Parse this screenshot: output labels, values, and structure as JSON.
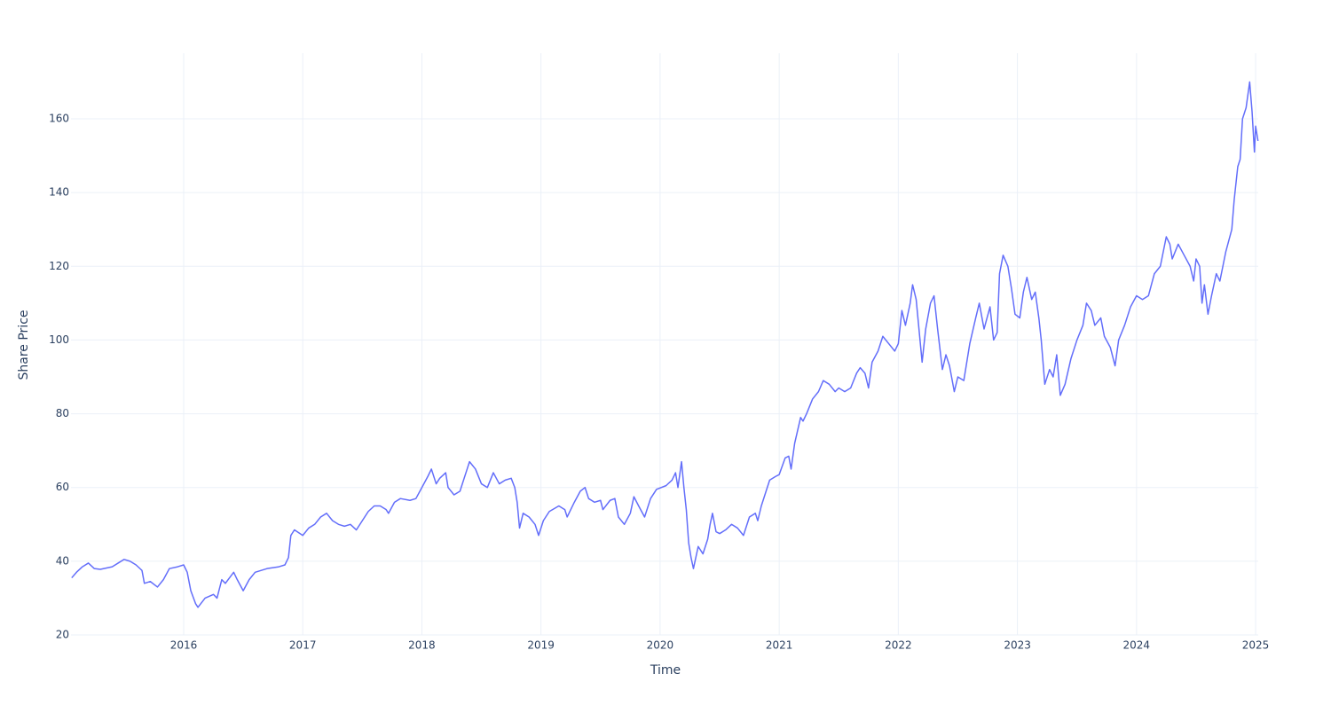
{
  "chart_data": {
    "type": "line",
    "x_label": "Time",
    "y_label": "Share Price",
    "color": "#636efa",
    "grid": true,
    "xlim": [
      2015.054,
      2025.022
    ],
    "ylim": [
      20,
      177.8
    ],
    "xticks": [
      2016,
      2017,
      2018,
      2019,
      2020,
      2021,
      2022,
      2023,
      2024,
      2025
    ],
    "yticks": [
      20,
      40,
      60,
      80,
      100,
      120,
      140,
      160
    ],
    "x": [
      2015.06,
      2015.1,
      2015.15,
      2015.2,
      2015.25,
      2015.3,
      2015.4,
      2015.45,
      2015.5,
      2015.55,
      2015.6,
      2015.65,
      2015.67,
      2015.72,
      2015.78,
      2015.83,
      2015.88,
      2015.95,
      2016.0,
      2016.03,
      2016.06,
      2016.1,
      2016.12,
      2016.18,
      2016.25,
      2016.28,
      2016.32,
      2016.35,
      2016.42,
      2016.45,
      2016.5,
      2016.55,
      2016.6,
      2016.7,
      2016.8,
      2016.85,
      2016.88,
      2016.9,
      2016.93,
      2017.0,
      2017.05,
      2017.1,
      2017.15,
      2017.2,
      2017.25,
      2017.3,
      2017.35,
      2017.4,
      2017.45,
      2017.5,
      2017.55,
      2017.6,
      2017.65,
      2017.7,
      2017.72,
      2017.77,
      2017.82,
      2017.9,
      2017.95,
      2018.0,
      2018.05,
      2018.08,
      2018.12,
      2018.15,
      2018.2,
      2018.22,
      2018.27,
      2018.32,
      2018.35,
      2018.38,
      2018.4,
      2018.45,
      2018.5,
      2018.55,
      2018.6,
      2018.65,
      2018.7,
      2018.75,
      2018.78,
      2018.8,
      2018.82,
      2018.85,
      2018.9,
      2018.95,
      2018.98,
      2019.02,
      2019.07,
      2019.15,
      2019.2,
      2019.22,
      2019.28,
      2019.33,
      2019.37,
      2019.4,
      2019.45,
      2019.5,
      2019.52,
      2019.58,
      2019.62,
      2019.65,
      2019.7,
      2019.75,
      2019.78,
      2019.82,
      2019.87,
      2019.92,
      2019.97,
      2020.05,
      2020.1,
      2020.13,
      2020.15,
      2020.18,
      2020.2,
      2020.22,
      2020.24,
      2020.26,
      2020.28,
      2020.32,
      2020.36,
      2020.4,
      2020.42,
      2020.44,
      2020.47,
      2020.5,
      2020.55,
      2020.6,
      2020.65,
      2020.7,
      2020.75,
      2020.8,
      2020.82,
      2020.85,
      2020.88,
      2020.92,
      2020.97,
      2021.0,
      2021.05,
      2021.08,
      2021.1,
      2021.13,
      2021.18,
      2021.2,
      2021.23,
      2021.28,
      2021.33,
      2021.37,
      2021.42,
      2021.47,
      2021.5,
      2021.55,
      2021.6,
      2021.65,
      2021.68,
      2021.72,
      2021.75,
      2021.78,
      2021.83,
      2021.87,
      2021.92,
      2021.97,
      2022.0,
      2022.03,
      2022.06,
      2022.1,
      2022.12,
      2022.15,
      2022.2,
      2022.23,
      2022.27,
      2022.3,
      2022.33,
      2022.37,
      2022.4,
      2022.43,
      2022.47,
      2022.5,
      2022.55,
      2022.6,
      2022.65,
      2022.68,
      2022.72,
      2022.77,
      2022.8,
      2022.83,
      2022.85,
      2022.88,
      2022.92,
      2022.95,
      2022.98,
      2023.02,
      2023.05,
      2023.08,
      2023.12,
      2023.15,
      2023.18,
      2023.2,
      2023.23,
      2023.27,
      2023.3,
      2023.33,
      2023.36,
      2023.4,
      2023.45,
      2023.5,
      2023.55,
      2023.58,
      2023.62,
      2023.65,
      2023.7,
      2023.73,
      2023.78,
      2023.82,
      2023.85,
      2023.9,
      2023.95,
      2024.0,
      2024.05,
      2024.1,
      2024.15,
      2024.2,
      2024.25,
      2024.28,
      2024.3,
      2024.35,
      2024.4,
      2024.45,
      2024.48,
      2024.5,
      2024.53,
      2024.55,
      2024.57,
      2024.6,
      2024.63,
      2024.67,
      2024.7,
      2024.75,
      2024.8,
      2024.82,
      2024.85,
      2024.87,
      2024.89,
      2024.92,
      2024.95,
      2024.97,
      2024.99,
      2025.0,
      2025.02
    ],
    "values": [
      35.5,
      37,
      38.5,
      39.5,
      38,
      37.8,
      38.5,
      39.5,
      40.5,
      40,
      39,
      37.5,
      34,
      34.5,
      33,
      35,
      38,
      38.5,
      39,
      37,
      32,
      28.5,
      27.5,
      30,
      31,
      30,
      35,
      34,
      37,
      35,
      32,
      35,
      37,
      38,
      38.5,
      39,
      41,
      47,
      48.5,
      47,
      49,
      50,
      52,
      53,
      51,
      50,
      49.5,
      50,
      48.5,
      51,
      53.5,
      55,
      55,
      54,
      53,
      56,
      57,
      56.5,
      57,
      60,
      63,
      65,
      61,
      62.5,
      64,
      60,
      58,
      59,
      62,
      65,
      67,
      65,
      61,
      60,
      64,
      61,
      62,
      62.5,
      60,
      56,
      49,
      53,
      52,
      50,
      47,
      51,
      53.5,
      55,
      54,
      52,
      56,
      59,
      60,
      57,
      56,
      56.5,
      54,
      56.5,
      57,
      52,
      50,
      53,
      57.5,
      55,
      52,
      57,
      59.5,
      60.5,
      62,
      64,
      60,
      67,
      60,
      54,
      45,
      41,
      38,
      44,
      42,
      46,
      50,
      53,
      48,
      47.5,
      48.5,
      50,
      49,
      47,
      52,
      53,
      51,
      55,
      58,
      62,
      63,
      63.5,
      68,
      68.5,
      65,
      72,
      79,
      78,
      80,
      84,
      86,
      89,
      88,
      86,
      87,
      86,
      87,
      91,
      92.5,
      91,
      87,
      94,
      97,
      101,
      99,
      97,
      99,
      108,
      104,
      110,
      115,
      111,
      94,
      103,
      110,
      112,
      103,
      92,
      96,
      93,
      86,
      90,
      89,
      99,
      106,
      110,
      103,
      109,
      100,
      102,
      118,
      123,
      120,
      114,
      107,
      106,
      113,
      117,
      111,
      113,
      106,
      100,
      88,
      92,
      90,
      96,
      85,
      88,
      95,
      100,
      104,
      110,
      108,
      104,
      106,
      101,
      98,
      93,
      100,
      104,
      109,
      112,
      111,
      112,
      118,
      120,
      128,
      126,
      122,
      126,
      123,
      120,
      116,
      122,
      120,
      110,
      115,
      107,
      112,
      118,
      116,
      124,
      130,
      138,
      147,
      149,
      160,
      163,
      170,
      162,
      151,
      158,
      154
    ]
  }
}
